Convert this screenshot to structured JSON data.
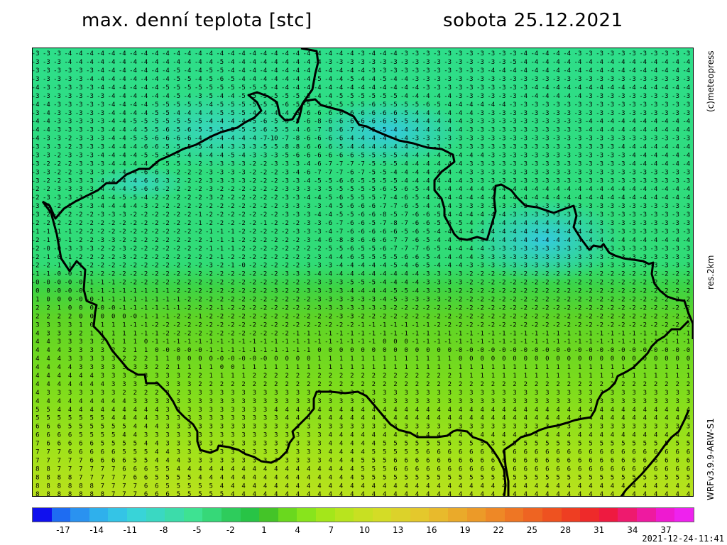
{
  "header": {
    "title": "max. denní teplota [stc]",
    "date": "sobota 25.12.2021"
  },
  "side_labels": {
    "credit": "(c)meteopress",
    "resolution": "res.2km",
    "model": "WRFv3.9.9-ARW-S1"
  },
  "timestamp": "2021-12-24-11:41",
  "legend": {
    "tick_labels": [
      "-17",
      "-14",
      "-11",
      "-8",
      "-5",
      "-2",
      "1",
      "4",
      "7",
      "10",
      "13",
      "16",
      "19",
      "22",
      "25",
      "28",
      "31",
      "34",
      "37"
    ],
    "colors": [
      "#1010ee",
      "#1e6cf2",
      "#2a92f0",
      "#2fb0ec",
      "#34c4e6",
      "#38d4d8",
      "#3ad8c2",
      "#3cdcaa",
      "#3ee292",
      "#36d878",
      "#2ecc5c",
      "#28c446",
      "#44c428",
      "#6ad81e",
      "#88e41c",
      "#a4e61a",
      "#b8e41e",
      "#c8e022",
      "#d4dc26",
      "#dcd22a",
      "#e4c82c",
      "#e8ba2c",
      "#eaaa2a",
      "#ec9a28",
      "#ee8826",
      "#ee7624",
      "#ee6422",
      "#ee5220",
      "#ee3e22",
      "#ee2a2a",
      "#ee1a40",
      "#ee1a6e",
      "#ee1aa0",
      "#ee1ad0",
      "#ee22ee"
    ]
  },
  "map": {
    "temperature_rows": [
      "-3 -3 -3 -4 -4 -4 -4 -4 -4 -4 -4 -4 -4 -4 -4 -4 -4 -4 -4 -4 -4 -4 -4 -4 -4 -4 -4 -4 -4 -4 -3 -4 -4 -4 -3 -3 -3 -3 -3 -3 -3 -3 -3 -3 -3 -4 -4 -4 -4 -4 -3 -3 -3 -3 -3 -3 -3 -3 -3 -3 -3",
      "-3 -3 -3 -4 -4 -4 -4 -4 -4 -4 -4 -4 -4 -4 -4 -4 -4 -5 -4 -4 -4 -4 -4 -4 -4 -4 -4 -3 -3 -3 -3 -3 -3 -3 -3 -3 -3 -3 -3 -3 -3 -3 -3 -3 -5 -4 -4 -4 -4 -4 -4 -4 -4 -4 -4 -4 -4 -4 -4 -4 -4",
      "-3 -3 -3 -3 -3 -3 -4 -4 -4 -4 -4 -4 -4 -5 -4 -4 -5 -5 -4 -4 -4 -4 -4 -4 -4 -4 -4 -4 -4 -4 -4 -3 -3 -3 -3 -3 -3 -3 -3 -3 -3 -3 -4 -4 -4 -4 -4 -4 -4 -4 -4 -4 -4 -4 -4 -4 -4 -4 -4 -4 -4",
      "-3 -3 -3 -3 -3 -4 -4 -4 -4 -4 -4 -4 -4 -5 -5 -4 -5 -6 -5 -4 -4 -4 -4 -4 -4 -4 -5 -4 -4 -5 -4 -4 -5 -4 -4 -3 -3 -3 -3 -3 -3 -3 -3 -3 -3 -3 -3 -3 -3 -3 -3 -3 -3 -3 -3 -3 -3 -3 -3 -3 -3",
      "-4 -3 -3 -3 -3 -3 -4 -4 -4 -4 -4 -4 -5 -5 -5 -5 -5 -5 -5 -5 -5 -5 -4 -4 -4 -4 -4 -4 -4 -4 -4 -4 -4 -4 -4 -4 -3 -3 -3 -3 -3 -3 -3 -3 -3 -3 -4 -4 -4 -4 -4 -4 -4 -4 -4 -4 -4 -4 -4 -4 -4",
      "-3 -3 -3 -3 -3 -3 -3 -4 -4 -4 -4 -4 -4 -5 -4 -3 -5 -4 -4 -5 -5 -5 -5 -5 -5 -5 -4 -4 -5 -5 -5 -5 -5 -5 -4 -4 -4 -4 -4 -3 -3 -3 -3 -3 -3 -4 -4 -4 -4 -4 -4 -3 -3 -3 -3 -3 -3 -3 -3 -3 -3",
      "-4 -4 -3 -3 -3 -3 -3 -4 -4 -4 -4 -5 -5 -5 -5 -5 -4 -5 -5 -5 -5 -5 -5 -6 -5 -5 -5 -5 -5 -5 -5 -6 -5 -5 -5 -5 -6 -5 -4 -4 -4 -4 -4 -4 -3 -3 -3 -3 -3 -3 -3 -3 -3 -3 -3 -3 -3 -3 -3 -3 -3",
      "-3 -4 -3 -3 -3 -3 -3 -4 -4 -4 -4 -5 -5 -4 -4 -4 -4 -5 -5 -5 -4 -4 -4 -4 -5 -6 -6 -6 -6 -6 -6 -6 -6 -6 -5 -4 -4 -4 -4 -4 -4 -3 -3 -3 -3 -3 -3 -3 -3 -3 -3 -3 -3 -3 -3 -3 -3 -3 -3 -3 -3",
      "-4 -4 -3 -3 -3 -3 -3 -4 -4 -5 -5 -5 -5 -5 -5 -5 -4 -4 -4 -4 -5 -6 -5 -5 -5 -6 -8 -6 -6 -6 -6 -6 -6 -5 -5 -4 -4 -4 -4 -4 -3 -3 -3 -3 -3 -3 -3 -3 -3 -3 -3 -4 -4 -4 -4 -4 -4 -4 -4 -4 -4",
      "-4 -4 -3 -3 -3 -3 -3 -4 -4 -4 -5 -5 -6 -5 -6 -5 -5 -5 -5 -5 -5 -6 -5 -5 -4 -6 -7 -8 -6 -7 -7 -5 -5 -4 -4 -4 -4 -4 -4 -4 -3 -3 -3 -3 -3 -3 -3 -3 -3 -3 -3 -4 -4 -4 -4 -4 -4 -4 -4 -4 -4",
      "-4 -3 -3 -2 -3 -3 -3 -4 -4 -5 -5 -6 -6 -6 -6 -4 -5 -4 -4 -4 -4 -7 -10 -7 -8 -6 -6 -6 -6 -4 -4 -4 -4 -4 -4 -3 -3 -3 -3 -3 -3 -3 -3 -3 -3 -3 -3 -3 -3 -3 -3 -3 -3 -3 -3 -3 -3 -3 -3 -3 -3",
      "-3 -3 -3 -2 -3 -3 -3 -4 -4 -4 -6 -6 -5 -5 -5 -5 -4 -4 -3 -3 -3 -5 -5 -8 -8 -6 -6 -6 -5 -4 -4 -4 -4 -4 -4 -3 -3 -3 -3 -3 -3 -3 -3 -3 -3 -3 -3 -3 -3 -3 -3 -3 -3 -3 -4 -4 -4 -4 -4 -4 -4",
      "-3 -3 -2 -3 -3 -3 -4 -4 -4 -4 -5 -5 -5 -5 -4 -4 -4 -4 -5 -4 -3 -3 -3 -5 -6 -6 -6 -6 -6 -6 -5 -5 -5 -5 -4 -4 -4 -4 -4 -4 -4 -4 -3 -3 -3 -3 -3 -3 -3 -3 -3 -3 -3 -3 -3 -4 -4 -4 -4 -4 -4",
      "-3 -2 -2 -2 -3 -3 -3 -4 -4 -4 -4 -5 -5 -5 -3 -2 -3 -3 -3 -3 -2 -2 -3 -3 -3 -4 -6 -7 -7 -7 -7 -5 -5 -5 -4 -4 -4 -4 -4 -4 -3 -3 -3 -3 -3 -3 -3 -3 -3 -3 -3 -3 -3 -3 -3 -4 -4 -4 -4 -4 -4",
      "-3 -3 -2 -2 -3 -3 -3 -4 -4 -4 -6 -6 -3 -2 -2 -2 -3 -3 -3 -3 -2 -2 -2 -3 -4 -6 -7 -7 -7 -6 -7 -5 -5 -4 -4 -4 -4 -4 -4 -4 -3 -3 -3 -3 -3 -3 -3 -3 -3 -3 -3 -3 -3 -3 -3 -3 -3 -3 -3 -3 -3",
      "-3 -2 -2 -3 -3 -3 -4 -4 -4 -4 -6 -6 -3 -2 -2 -2 -3 -3 -3 -3 -2 -2 -2 -3 -3 -4 -5 -5 -6 -6 -5 -5 -5 -5 -4 -4 -4 -4 -4 -4 -3 -3 -3 -3 -3 -3 -3 -3 -3 -3 -3 -3 -3 -3 -3 -3 -3 -3 -3 -3 -3",
      "-2 -2 -3 -3 -3 -3 -4 -4 -4 -5 -6 -6 -2 -2 -2 -2 -3 -2 -2 -2 -2 -2 -2 -3 -3 -3 -3 -5 -5 -5 -5 -5 -6 -5 -6 -5 -4 -4 -4 -4 -4 -4 -4 -4 -4 -4 -4 -4 -4 -4 -4 -4 -4 -4 -4 -4 -4 -4 -4 -4 -4",
      "-2 -3 -3 -3 -3 -3 -4 -4 -5 -5 -4 -2 -2 -2 -2 -2 -3 -2 -2 -2 -2 -2 -2 -3 -3 -4 -4 -5 -6 -5 -5 -5 -7 -4 -6 -5 -4 -4 -4 -4 -4 -4 -4 -4 -4 -4 -4 -4 -4 -4 -4 -4 -4 -4 -4 -4 -4 -4 -4 -4 -4",
      "-3 -3 -2 -3 -3 -3 -4 -4 -4 -4 -3 -2 -2 -2 -2 -2 -2 -2 -2 -2 -2 -2 -2 -3 -3 -3 -3 -4 -5 -6 -6 -6 -7 -7 -6 -5 -4 -4 -4 -3 -3 -3 -3 -3 -3 -3 -3 -3 -3 -3 -3 -3 -3 -3 -3 -3 -3 -3 -3 -3 -3",
      "-3 -2 -2 -2 -2 -2 -3 -3 -3 -2 -2 -2 -2 -2 -2 -1 -2 -2 -2 -2 -2 -2 -2 -3 -3 -3 -4 -4 -5 -5 -6 -6 -8 -5 -7 -6 -6 -5 -4 -4 -4 -4 -4 -4 -3 -3 -3 -3 -3 -3 -3 -3 -3 -3 -3 -3 -3 -3 -3 -3 -3",
      "-2 -2 -2 -2 -2 -2 -2 -2 -2 -2 -2 -2 -2 -2 -2 -1 -2 -2 -2 -2 -2 -1 -2 -2 -2 -3 -3 -6 -7 -6 -6 -5 -7 -8 -7 -6 -6 -5 -6 -5 -4 -4 -4 -4 -4 -4 -4 -4 -4 -4 -4 -4 -3 -3 -3 -3 -3 -3 -3 -3 -3",
      "-1 -1 -1 -1 -2 -2 -2 -2 -2 -2 -2 -2 -2 -2 -2 -2 -1 -1 -1 -2 -2 -2 -2 -2 -3 -3 -3 -4 -7 -6 -6 -6 -6 -6 -5 -6 -5 -4 -4 -4 -4 -4 -4 -4 -4 -4 -4 -4 -4 -4 -4 -4 -3 -3 -3 -3 -3 -3 -3 -3 -3",
      "-2 -1 -0 -1 -2 -2 -3 -3 -2 -2 -2 -2 -2 -2 -2 -2 -1 -1 -1 -2 -2 -2 -2 -2 -2 -3 -4 -6 -8 -8 -6 -6 -6 -7 -7 -6 -5 -4 -4 -4 -4 -4 -4 -4 -4 -4 -4 -4 -4 -4 -4 -4 -4 -4 -4 -4 -4 -4 -4 -4 -4",
      "-2 -0 -0 -3 -3 -3 -2 -2 -3 -2 -2 -2 -2 -2 -2 -2 -1 -1 -1 -2 -2 -2 -2 -2 -2 -2 -2 -5 -5 -6 -5 -5 -6 -7 -7 -7 -6 -5 -4 -4 -4 -4 -3 -3 -3 -3 -3 -3 -3 -3 -3 -3 -3 -3 -3 -3 -3 -3 -3 -3 -3",
      "-2 -1 -0 -1 -2 -2 -2 -2 -3 -2 -2 -2 -2 -2 -2 -2 -2 -1 -2 -2 -2 -2 -2 -2 -2 -2 -3 -4 -4 -6 -5 -5 -5 -5 -6 -6 -5 -4 -4 -4 -4 -3 -3 -3 -3 -3 -3 -3 -3 -3 -3 -3 -3 -3 -3 -3 -3 -3 -3 -3 -3",
      "-2 -2 -1 -1 -1 -2 -2 -2 -2 -2 -2 -2 -2 -2 -2 -2 -3 -2 -1 -0 -2 -2 -2 -2 -2 -3 -3 -3 -4 -4 -4 -4 -4 -5 -4 -6 -5 -4 -4 -4 -3 -3 -3 -3 -3 -3 -3 -3 -3 -3 -3 -3 -3 -3 -3 -3 -3 -3 -3 -3 -3",
      "-1 -1 -0 -0 -1 -2 -2 -2 -2 -2 -2 -2 -2 -2 -2 -2 -2 -2 -2 -2 -2 -2 -2 -3 -3 -3 -4 -4 -4 -4 -4 -4 -4 -4 -4 -4 -3 -3 -3 -3 -2 -2 -2 -2 -2 -2 -2 -2 -2 -2 -2 -2 -2 -2 -2 -2 -2 -2 -2 -2 -2",
      "-0 -0 -0 -0 -0 -1 -1 -1 -2 -2 -2 -2 -2 -2 -2 -2 -2 -2 -2 -2 -2 -2 -2 -2 -2 -2 -3 -3 -3 -5 -5 -5 -4 -4 -4 -4 -3 -3 -3 -3 -2 -2 -2 -2 -2 -2 -2 -2 -2 -2 -2 -2 -2 -2 -2 -2 -2 -2 -2 -2 -2",
      "0 0 -0 -0 -0 -1 -1 -1 -1 -1 -1 -1 -1 -2 -2 -2 -2 -2 -2 -2 -2 -2 -3 -2 -2 -3 -3 -3 -3 -4 -4 -4 -4 -5 -5 -4 -3 -3 -3 -2 -2 -2 -2 -2 -2 -2 -2 -2 -2 -2 -2 -2 -2 -2 -2 -2 -2 -2 -2 -2 -2",
      "1 0 0 0 -0 -0 -1 -1 -1 -1 -1 -1 -1 -1 -2 -2 -2 -2 -2 -2 -2 -2 -2 -2 -2 -2 -3 -3 -3 -3 -3 -3 -4 -5 -3 -3 -3 -3 -2 -2 -2 -2 -2 -2 -2 -2 -2 -2 -2 -2 -2 -2 -2 -2 -2 -2 -2 -2 -2 -2 -2",
      "2 2 1 0 0 0 -0 -0 -1 -1 -1 -1 -1 -1 -2 -2 -2 -1 -2 -2 -2 -2 -2 -2 -2 -2 -3 -3 -3 -3 -3 -3 -3 -2 -2 -2 -2 -2 -2 -2 -2 -2 -2 -2 -2 -2 -2 -2 -2 -2 -2 -2 -2 -2 -2 -2 -2 -2 -2 -2 -2",
      "2 2 2 2 0 0 0 0 0 -0 -1 -1 -1 -2 -2 -1 -2 -2 -2 -2 -2 -2 -2 -2 -2 -2 -2 -2 -3 -3 -2 -2 -2 -2 -2 -2 -2 -2 -2 -2 -2 -2 -2 -2 -2 -2 -2 -2 -2 -2 -2 -2 -2 -2 -2 -2 -2 -2 -2 -2 -2",
      "3 3 3 3 1 0 1 1 1 -1 -1 -2 -2 -2 -2 -2 -2 -2 -2 -2 -2 -2 -2 -2 -2 -2 -2 -2 -2 -2 -1 -1 -1 -1 -1 -1 -1 -2 -2 -2 -2 -2 -2 -2 -2 -2 -2 -2 -2 -2 -2 -2 -2 -2 -2 -2 -2 -2 -2 -2 -2",
      "4 3 3 3 2 1 1 1 1 1 -1 -1 -2 -2 -2 -2 -2 -2 -2 -2 -2 -2 -2 -2 -1 -1 -1 -1 -1 -1 -1 -1 -1 -1 -1 -1 -1 -1 -1 -1 -1 -1 -1 -1 -1 -1 -1 -1 -1 -1 -1 -1 -1 -1 -1 -1 -1 -1 -1 -1 -1",
      "4 4 3 3 3 3 2 1 1 1 0 -1 -1 -1 -1 -1 -1 -1 -1 -1 -1 -1 -1 -1 -1 -1 -1 -1 -1 -1 -1 -1 0 0 0 -1 -1 -1 -1 -1 -1 -1 -1 -1 -1 -1 -1 -1 -1 -1 -1 -1 -1 -1 -1 -1 -1 -1 -1 -1 -1",
      "4 4 4 3 3 3 3 2 2 1 1 0 -0 -0 -0 -0 -1 -1 -1 -1 -1 -1 -1 -1 -1 -1 0 0 0 0 0 0 0 0 0 0 0 0 0 -0 -0 -0 -0 -0 -0 -0 -0 -0 -0 -0 -0 -0 -0 -0 -0 -0 -0 -0 -0 -0 -0",
      "4 4 4 3 3 3 3 3 2 2 2 1 1 0 0 0 0 -0 -0 -0 -0 -0 0 0 0 0 1 1 1 1 1 1 1 1 1 1 1 1 1 0 0 0 0 0 0 0 0 0 0 0 0 0 0 0 0 0 0 0 0 0 0",
      "4 4 4 4 3 3 3 3 3 3 3 2 2 1 1 1 1 0 0 1 1 1 1 1 1 1 1 1 1 1 1 1 1 1 1 1 1 1 1 1 1 1 1 1 1 1 1 1 1 1 1 1 1 1 1 1 1 1 1 1 1",
      "4 4 4 4 4 4 3 3 3 3 3 3 3 3 2 2 1 1 1 1 2 2 2 2 2 2 2 2 2 2 2 2 2 2 2 2 2 2 2 1 1 1 1 1 1 1 1 1 1 1 1 1 1 1 1 1 1 1 1 1 1",
      "4 4 4 4 4 4 4 3 3 3 3 3 3 3 3 2 2 2 2 2 2 2 2 2 2 2 2 2 2 2 2 2 2 2 2 2 2 2 2 2 2 2 2 2 2 2 2 2 2 2 2 2 2 2 2 2 2 2 2 2 2",
      "4 3 3 3 3 3 3 3 2 2 2 2 2 2 3 3 3 3 3 3 3 3 3 3 3 3 3 3 3 3 3 3 3 3 3 3 3 3 3 3 3 3 3 3 3 3 3 3 3 3 3 3 3 3 3 3 3 3 3 3 3",
      "4 4 4 4 4 4 4 4 4 3 3 3 3 3 3 3 3 3 3 3 3 3 3 3 3 3 3 3 3 3 3 3 3 3 3 3 3 3 3 3 3 3 3 3 3 3 3 3 3 3 3 3 3 3 3 3 3 3 3 3 3",
      "5 5 4 4 4 4 4 4 4 4 4 4 3 3 3 3 3 3 3 3 3 3 4 4 4 4 4 4 4 4 4 4 4 4 4 4 4 4 4 4 4 4 4 4 4 4 4 4 4 4 4 4 4 4 4 4 4 4 4 4 4",
      "5 5 5 5 5 5 5 4 4 4 4 3 3 3 3 3 3 3 3 3 3 3 3 4 4 4 4 4 4 4 4 4 4 4 4 4 4 4 4 4 4 4 4 4 4 4 4 4 4 4 4 4 4 4 4 4 4 4 4 4 4",
      "6 6 6 5 5 5 5 5 5 4 4 4 3 3 3 3 3 3 3 3 3 3 3 3 3 3 3 3 3 3 3 3 3 3 3 3 3 3 3 3 3 3 3 3 3 3 3 3 3 3 3 3 3 3 3 3 3 3 3 3 3",
      "6 6 6 6 5 5 5 5 4 4 3 3 3 3 3 3 3 3 3 3 3 3 3 3 3 3 3 4 4 4 4 4 4 4 4 4 4 4 4 4 4 4 4 4 4 4 4 4 4 4 4 4 4 4 4 4 4 4 4 4 4",
      "7 6 6 6 6 6 5 5 5 5 4 4 3 3 3 3 3 3 3 3 3 3 3 3 3 3 3 4 4 4 4 4 5 5 5 5 5 5 5 5 5 5 5 5 5 5 5 5 5 5 5 5 5 5 5 5 5 5 5 5 5",
      "7 7 7 6 6 6 6 6 5 5 5 4 4 3 3 3 3 3 3 3 3 3 3 3 3 3 3 4 4 4 4 5 5 5 5 5 6 6 6 6 6 6 6 6 6 6 6 6 6 6 6 6 6 6 6 6 6 6 6 6 6",
      "7 7 7 7 7 6 6 6 6 5 5 4 4 4 3 3 3 3 3 3 3 3 3 3 3 3 3 4 4 4 5 5 5 6 6 6 6 6 6 6 6 6 6 6 6 6 6 6 6 6 6 6 6 6 6 6 6 6 6 6 6",
      "8 8 7 7 7 7 7 7 6 6 6 5 5 4 4 4 4 4 4 4 4 4 4 4 4 4 4 4 4 4 5 5 5 6 6 6 6 6 6 6 6 6 6 6 6 6 6 6 6 6 6 6 6 6 6 6 6 6 6 6 6",
      "8 8 8 8 7 7 7 7 7 6 6 5 5 5 5 4 4 4 4 4 4 4 4 4 4 4 4 4 4 4 5 5 5 5 5 5 5 5 5 5 5 5 5 5 5 5 5 5 5 5 5 5 5 5 5 5 5 5 5 5 5",
      "8 8 8 8 8 8 7 7 7 7 6 6 5 5 5 5 5 4 4 4 4 4 4 4 4 4 4 4 4 4 4 4 4 4 4 4 4 4 4 4 4 4 4 4 4 4 4 4 4 4 4 4 4 4 4 4 4 4 4 4 4",
      "8 8 8 8 8 8 8 7 7 7 6 6 6 5 5 5 5 5 4 4 4 4 4 4 4 4 4 4 4 4 4 4 4 4 4 4 4 4 4 4 4 4 4 4 4 4 4 4 4 4 4 4 4 4 4 4 4 4 4 4 4"
    ]
  }
}
